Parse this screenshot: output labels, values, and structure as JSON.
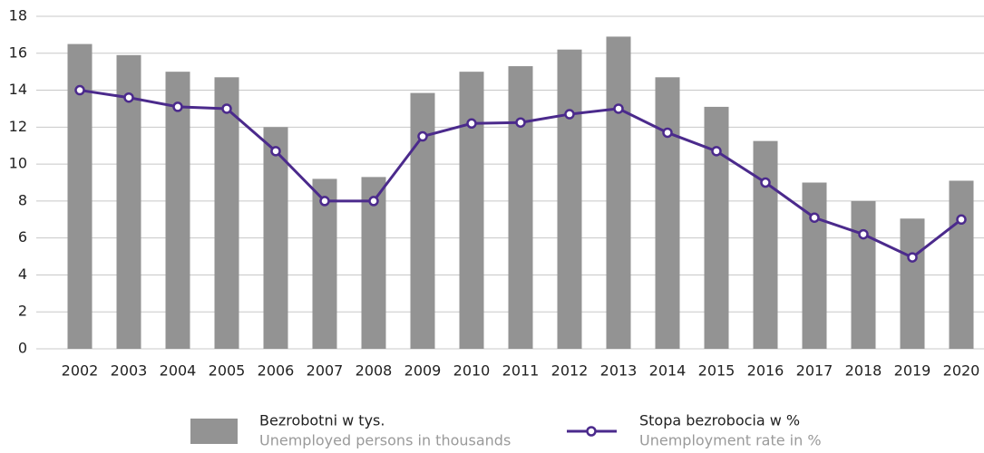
{
  "chart_data": {
    "type": "bar-line",
    "categories": [
      "2002",
      "2003",
      "2004",
      "2005",
      "2006",
      "2007",
      "2008",
      "2009",
      "2010",
      "2011",
      "2012",
      "2013",
      "2014",
      "2015",
      "2016",
      "2017",
      "2018",
      "2019",
      "2020"
    ],
    "series": [
      {
        "name": "Bezrobotni w tys.",
        "name_en": "Unemployed persons in thousands",
        "type": "bar",
        "color": "#939393",
        "values": [
          16.5,
          15.9,
          15.0,
          14.7,
          12.0,
          9.2,
          9.3,
          13.85,
          15.0,
          15.3,
          16.2,
          16.9,
          14.7,
          13.1,
          11.25,
          9.0,
          8.0,
          7.05,
          9.1
        ]
      },
      {
        "name": "Stopa bezrobocia w %",
        "name_en": "Unemployment rate in %",
        "type": "line",
        "color": "#4b2a8c",
        "values": [
          14.0,
          13.6,
          13.1,
          13.0,
          10.7,
          8.0,
          8.0,
          11.5,
          12.2,
          12.25,
          12.7,
          13.0,
          11.7,
          10.7,
          9.0,
          7.1,
          6.2,
          4.95,
          7.0
        ]
      }
    ],
    "ylim": [
      0,
      18
    ],
    "yticks": [
      0,
      2,
      4,
      6,
      8,
      10,
      12,
      14,
      16,
      18
    ],
    "grid": true
  }
}
